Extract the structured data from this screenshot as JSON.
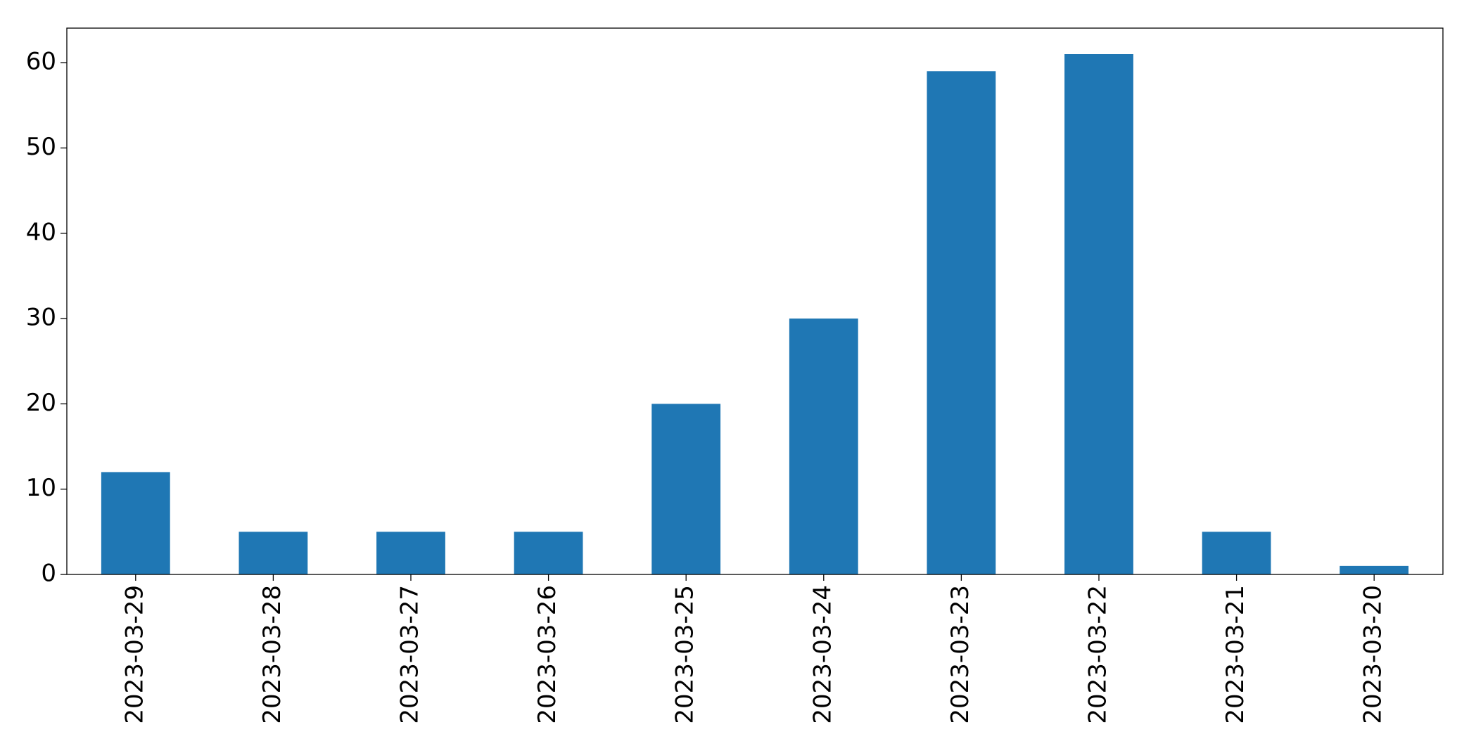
{
  "chart_data": {
    "type": "bar",
    "categories": [
      "2023-03-29",
      "2023-03-28",
      "2023-03-27",
      "2023-03-26",
      "2023-03-25",
      "2023-03-24",
      "2023-03-23",
      "2023-03-22",
      "2023-03-21",
      "2023-03-20"
    ],
    "values": [
      12,
      5,
      5,
      5,
      20,
      30,
      59,
      61,
      5,
      1
    ],
    "color": "#1f77b4",
    "ylim": [
      0,
      64.05
    ],
    "yticks": [
      0,
      10,
      20,
      30,
      40,
      50,
      60
    ],
    "grid": false
  }
}
